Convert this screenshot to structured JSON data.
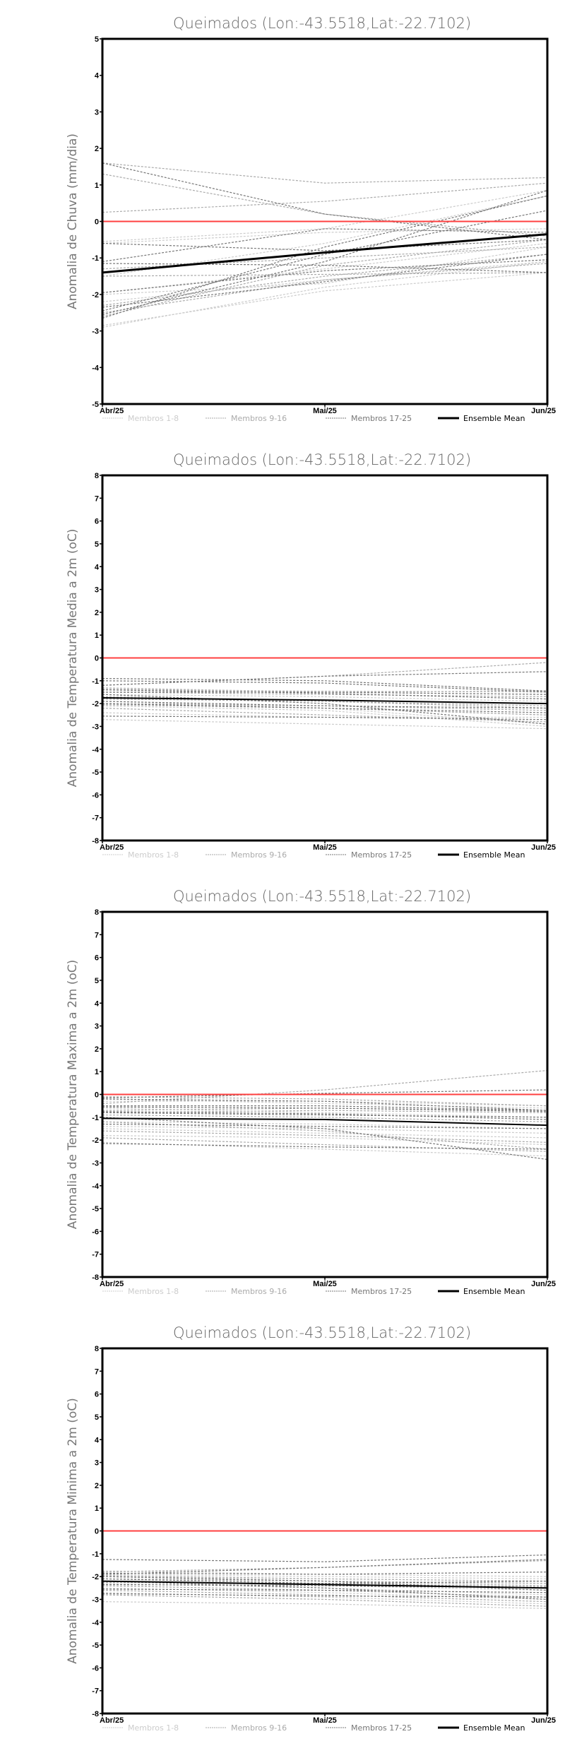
{
  "colors": {
    "group1": "#cccccc",
    "group2": "#aaaaaa",
    "group3": "#777777",
    "mean": "#000000",
    "zero_line": "#ff4040"
  },
  "legend": [
    "Membros 1-8",
    "Membros 9-16",
    "Membros 17-25",
    "Ensemble Mean"
  ],
  "chart_data": [
    {
      "type": "line",
      "title": "Queimados (Lon:-43.5518,Lat:-22.7102)",
      "ylabel": "Anomalia de Chuva (mm/dia)",
      "categories": [
        "Abr/25",
        "Mai/25",
        "Jun/25"
      ],
      "ylim": [
        -5,
        5
      ],
      "yticks": [
        -5,
        -4,
        -3,
        -2,
        -1,
        0,
        1,
        2,
        3,
        4,
        5
      ],
      "mean": [
        -1.4,
        -0.85,
        -0.35
      ],
      "members": [
        [
          -0.6,
          -0.3,
          -0.2
        ],
        [
          -1.5,
          -0.6,
          0.7
        ],
        [
          -2.2,
          -1.6,
          -1.1
        ],
        [
          -2.85,
          -1.9,
          -1.4
        ],
        [
          -2.9,
          -1.8,
          -1.1
        ],
        [
          -1.95,
          -1.3,
          -0.6
        ],
        [
          -0.55,
          -0.2,
          0.85
        ],
        [
          -2.0,
          -1.7,
          -0.7
        ],
        [
          0.25,
          0.55,
          1.05
        ],
        [
          1.3,
          0.2,
          -0.4
        ],
        [
          -1.3,
          -1.0,
          -0.7
        ],
        [
          -2.5,
          -1.6,
          -1.15
        ],
        [
          -2.3,
          -1.5,
          -0.9
        ],
        [
          -1.5,
          -1.45,
          -1.4
        ],
        [
          -2.6,
          -1.2,
          -0.5
        ],
        [
          1.6,
          1.05,
          1.2
        ],
        [
          1.6,
          0.2,
          -0.5
        ],
        [
          -1.1,
          -0.2,
          -0.3
        ],
        [
          -0.6,
          -0.8,
          -0.5
        ],
        [
          -2.45,
          -0.9,
          0.3
        ],
        [
          -2.55,
          -1.1,
          0.85
        ],
        [
          -2.65,
          -0.7,
          0.7
        ],
        [
          -1.95,
          -1.35,
          -1.05
        ],
        [
          -2.35,
          -1.65,
          -0.9
        ],
        [
          -1.15,
          -1.2,
          -1.4
        ]
      ]
    },
    {
      "type": "line",
      "title": "Queimados (Lon:-43.5518,Lat:-22.7102)",
      "ylabel": "Anomalia de Temperatura Media a 2m (oC)",
      "categories": [
        "Abr/25",
        "Mai/25",
        "Jun/25"
      ],
      "ylim": [
        -8,
        8
      ],
      "yticks": [
        -8,
        -7,
        -6,
        -5,
        -4,
        -3,
        -2,
        -1,
        0,
        1,
        2,
        3,
        4,
        5,
        6,
        7,
        8
      ],
      "mean": [
        -1.75,
        -1.85,
        -2.0
      ],
      "members": [
        [
          -1.3,
          -1.5,
          -1.6
        ],
        [
          -2.7,
          -2.9,
          -3.1
        ],
        [
          -2.0,
          -2.2,
          -2.5
        ],
        [
          -1.6,
          -1.7,
          -1.9
        ],
        [
          -2.4,
          -2.6,
          -2.6
        ],
        [
          -1.4,
          -1.45,
          -1.5
        ],
        [
          -1.9,
          -2.2,
          -2.9
        ],
        [
          -2.1,
          -2.3,
          -3.0
        ],
        [
          -1.2,
          -0.8,
          -0.2
        ],
        [
          -1.5,
          -1.6,
          -1.7
        ],
        [
          -2.0,
          -2.1,
          -2.3
        ],
        [
          -1.8,
          -1.9,
          -2.2
        ],
        [
          -1.35,
          -1.5,
          -1.45
        ],
        [
          -2.2,
          -2.5,
          -2.8
        ],
        [
          -1.7,
          -1.9,
          -2.1
        ],
        [
          -2.05,
          -2.2,
          -2.5
        ],
        [
          -0.9,
          -1.0,
          -1.45
        ],
        [
          -1.2,
          -0.8,
          -0.6
        ],
        [
          -1.5,
          -1.5,
          -1.6
        ],
        [
          -2.55,
          -2.6,
          -2.7
        ],
        [
          -1.4,
          -1.55,
          -1.8
        ],
        [
          -1.9,
          -2.1,
          -2.2
        ],
        [
          -1.0,
          -1.1,
          -1.5
        ],
        [
          -1.6,
          -2.0,
          -2.9
        ],
        [
          -2.0,
          -2.2,
          -2.4
        ]
      ]
    },
    {
      "type": "line",
      "title": "Queimados (Lon:-43.5518,Lat:-22.7102)",
      "ylabel": "Anomalia de Temperatura Maxima a 2m (oC)",
      "categories": [
        "Abr/25",
        "Mai/25",
        "Jun/25"
      ],
      "ylim": [
        -8,
        8
      ],
      "yticks": [
        -8,
        -7,
        -6,
        -5,
        -4,
        -3,
        -2,
        -1,
        0,
        1,
        2,
        3,
        4,
        5,
        6,
        7,
        8
      ],
      "mean": [
        -1.05,
        -1.1,
        -1.35
      ],
      "members": [
        [
          -0.3,
          -0.3,
          -0.5
        ],
        [
          -1.5,
          -1.7,
          -1.9
        ],
        [
          -2.1,
          -2.4,
          -2.7
        ],
        [
          -1.8,
          -1.9,
          -2.2
        ],
        [
          -0.6,
          -0.8,
          -1.0
        ],
        [
          -1.4,
          -1.5,
          -1.7
        ],
        [
          -1.2,
          -1.3,
          -1.5
        ],
        [
          -0.2,
          -0.4,
          -0.6
        ],
        [
          -0.4,
          0.2,
          1.05
        ],
        [
          -0.9,
          -1.0,
          -1.2
        ],
        [
          -1.6,
          -1.8,
          -2.1
        ],
        [
          -0.8,
          -0.7,
          -0.8
        ],
        [
          -1.2,
          -1.6,
          -2.4
        ],
        [
          -0.7,
          -0.6,
          -0.7
        ],
        [
          -1.9,
          -2.2,
          -2.5
        ],
        [
          -0.1,
          -0.2,
          -0.5
        ],
        [
          -0.15,
          0.05,
          0.2
        ],
        [
          -0.5,
          -0.5,
          -0.7
        ],
        [
          -0.8,
          -0.9,
          -1.0
        ],
        [
          -2.15,
          -2.3,
          -2.4
        ],
        [
          -1.0,
          -1.5,
          -2.85
        ],
        [
          -0.2,
          -0.3,
          -0.7
        ],
        [
          -0.75,
          -0.85,
          -1.1
        ],
        [
          -1.3,
          -1.4,
          -1.5
        ],
        [
          -0.55,
          -0.6,
          -0.75
        ]
      ]
    },
    {
      "type": "line",
      "title": "Queimados (Lon:-43.5518,Lat:-22.7102)",
      "ylabel": "Anomalia de Temperatura Minima a 2m (oC)",
      "categories": [
        "Abr/25",
        "Mai/25",
        "Jun/25"
      ],
      "ylim": [
        -8,
        8
      ],
      "yticks": [
        -8,
        -7,
        -6,
        -5,
        -4,
        -3,
        -2,
        -1,
        0,
        1,
        2,
        3,
        4,
        5,
        6,
        7,
        8
      ],
      "mean": [
        -2.2,
        -2.35,
        -2.5
      ],
      "members": [
        [
          -1.75,
          -1.9,
          -2.0
        ],
        [
          -2.5,
          -2.7,
          -3.0
        ],
        [
          -3.1,
          -3.2,
          -3.4
        ],
        [
          -2.2,
          -2.4,
          -2.6
        ],
        [
          -2.0,
          -2.1,
          -2.2
        ],
        [
          -2.7,
          -2.9,
          -3.2
        ],
        [
          -1.9,
          -2.0,
          -2.1
        ],
        [
          -2.3,
          -2.5,
          -2.8
        ],
        [
          -1.8,
          -1.6,
          -1.3
        ],
        [
          -2.1,
          -2.2,
          -2.3
        ],
        [
          -2.4,
          -2.6,
          -2.9
        ],
        [
          -2.0,
          -2.2,
          -2.4
        ],
        [
          -2.8,
          -3.0,
          -3.3
        ],
        [
          -2.25,
          -2.3,
          -2.45
        ],
        [
          -1.95,
          -2.1,
          -2.2
        ],
        [
          -2.6,
          -2.8,
          -3.1
        ],
        [
          -1.25,
          -1.35,
          -1.05
        ],
        [
          -1.85,
          -1.9,
          -1.8
        ],
        [
          -2.1,
          -2.3,
          -2.2
        ],
        [
          -2.75,
          -2.85,
          -2.9
        ],
        [
          -2.2,
          -2.5,
          -3.0
        ],
        [
          -1.9,
          -1.6,
          -1.25
        ],
        [
          -2.35,
          -2.4,
          -2.5
        ],
        [
          -2.0,
          -2.2,
          -2.6
        ],
        [
          -2.55,
          -2.6,
          -2.7
        ]
      ]
    }
  ]
}
